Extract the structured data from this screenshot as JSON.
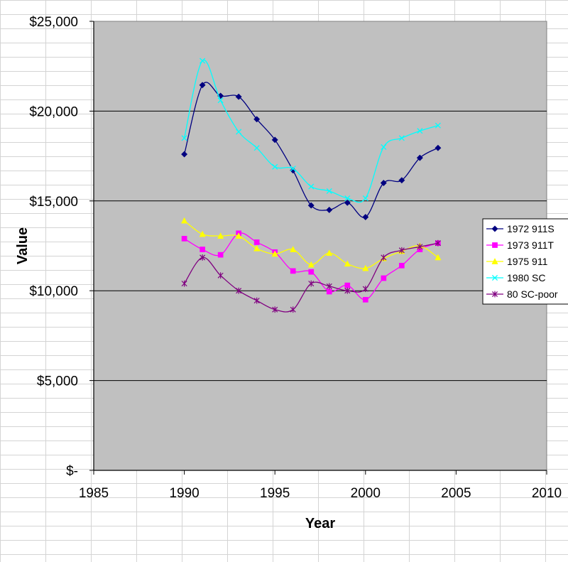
{
  "chart_data": {
    "type": "line",
    "title": "",
    "xlabel": "Year",
    "ylabel": "Value",
    "xlim": [
      1985,
      2010
    ],
    "ylim": [
      0,
      25000
    ],
    "x_ticks": [
      1985,
      1990,
      1995,
      2000,
      2005,
      2010
    ],
    "x_tick_labels": [
      "1985",
      "1990",
      "1995",
      "2000",
      "2005",
      "2010"
    ],
    "y_ticks": [
      0,
      5000,
      10000,
      15000,
      20000,
      25000
    ],
    "y_tick_labels": [
      "$-",
      "$5,000",
      "$10,000",
      "$15,000",
      "$20,000",
      "$25,000"
    ],
    "grid": "horizontal",
    "background_color": "#c0c0c0",
    "legend_position": "right",
    "smoothed": true,
    "x": [
      1990,
      1991,
      1992,
      1993,
      1994,
      1995,
      1996,
      1997,
      1998,
      1999,
      2000,
      2001,
      2002,
      2003,
      2004
    ],
    "series": [
      {
        "name": "1972 911S",
        "color": "#000080",
        "marker": "diamond",
        "values": [
          17600,
          21450,
          20850,
          20800,
          19550,
          18400,
          16700,
          14750,
          14500,
          14900,
          14100,
          16000,
          16150,
          17400,
          17950
        ]
      },
      {
        "name": "1973 911T",
        "color": "#ff00ff",
        "marker": "square",
        "values": [
          12900,
          12300,
          12000,
          13200,
          12700,
          12150,
          11100,
          11050,
          9950,
          10300,
          9500,
          10700,
          11400,
          12300,
          12650
        ]
      },
      {
        "name": "1975 911",
        "color": "#ffff00",
        "marker": "triangle",
        "values": [
          13900,
          13150,
          13050,
          13050,
          12350,
          12050,
          12300,
          11450,
          12100,
          11500,
          11250,
          11800,
          12200,
          12500,
          11850
        ]
      },
      {
        "name": "1980 SC",
        "color": "#00ffff",
        "marker": "x",
        "values": [
          18500,
          22800,
          20600,
          18850,
          17950,
          16900,
          16800,
          15800,
          15550,
          15150,
          15150,
          18000,
          18500,
          18900,
          19200
        ]
      },
      {
        "name": "80 SC-poor",
        "color": "#800080",
        "marker": "star",
        "values": [
          10400,
          11850,
          10850,
          10000,
          9450,
          8950,
          8950,
          10400,
          10250,
          10000,
          10100,
          11850,
          12250,
          12450,
          12650
        ]
      }
    ]
  }
}
